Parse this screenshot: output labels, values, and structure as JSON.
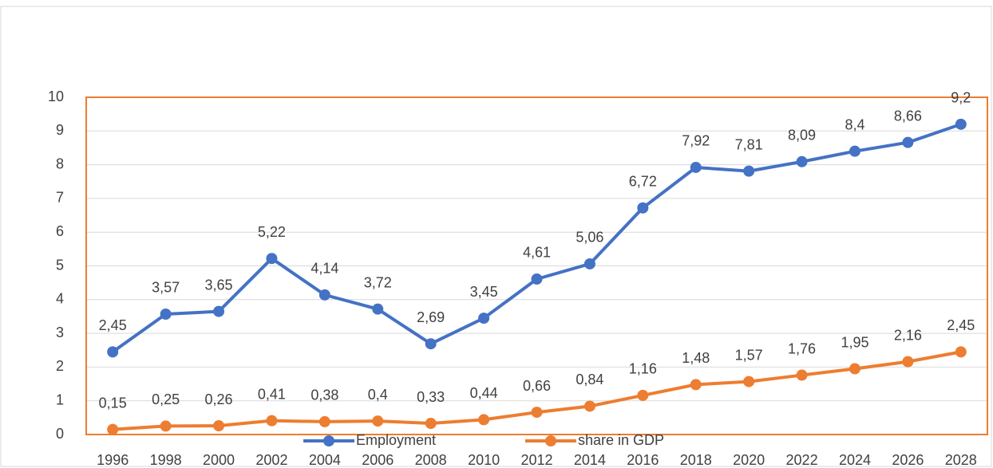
{
  "chart_data": {
    "type": "line",
    "categories": [
      "1996",
      "1998",
      "2000",
      "2002",
      "2004",
      "2006",
      "2008",
      "2010",
      "2012",
      "2014",
      "2016",
      "2018",
      "2020",
      "2022",
      "2024",
      "2026",
      "2028"
    ],
    "series": [
      {
        "name": "Employment",
        "color": "#4472c4",
        "values": [
          2.45,
          3.57,
          3.65,
          5.22,
          4.14,
          3.72,
          2.69,
          3.45,
          4.61,
          5.06,
          6.72,
          7.92,
          7.81,
          8.09,
          8.4,
          8.66,
          9.2
        ],
        "value_labels": [
          "2,45",
          "3,57",
          "3,65",
          "5,22",
          "4,14",
          "3,72",
          "2,69",
          "3,45",
          "4,61",
          "5,06",
          "6,72",
          "7,92",
          "7,81",
          "8,09",
          "8,4",
          "8,66",
          "9,2"
        ]
      },
      {
        "name": "share in GDP",
        "color": "#ed7d31",
        "values": [
          0.15,
          0.25,
          0.26,
          0.41,
          0.38,
          0.4,
          0.33,
          0.44,
          0.66,
          0.84,
          1.16,
          1.48,
          1.57,
          1.76,
          1.95,
          2.16,
          2.45
        ],
        "value_labels": [
          "0,15",
          "0,25",
          "0,26",
          "0,41",
          "0,38",
          "0,4",
          "0,33",
          "0,44",
          "0,66",
          "0,84",
          "1,16",
          "1,48",
          "1,57",
          "1,76",
          "1,95",
          "2,16",
          "2,45"
        ]
      }
    ],
    "ylim": [
      0,
      10
    ],
    "yticks": [
      0,
      1,
      2,
      3,
      4,
      5,
      6,
      7,
      8,
      9,
      10
    ],
    "grid": true,
    "legend": "bottom"
  }
}
